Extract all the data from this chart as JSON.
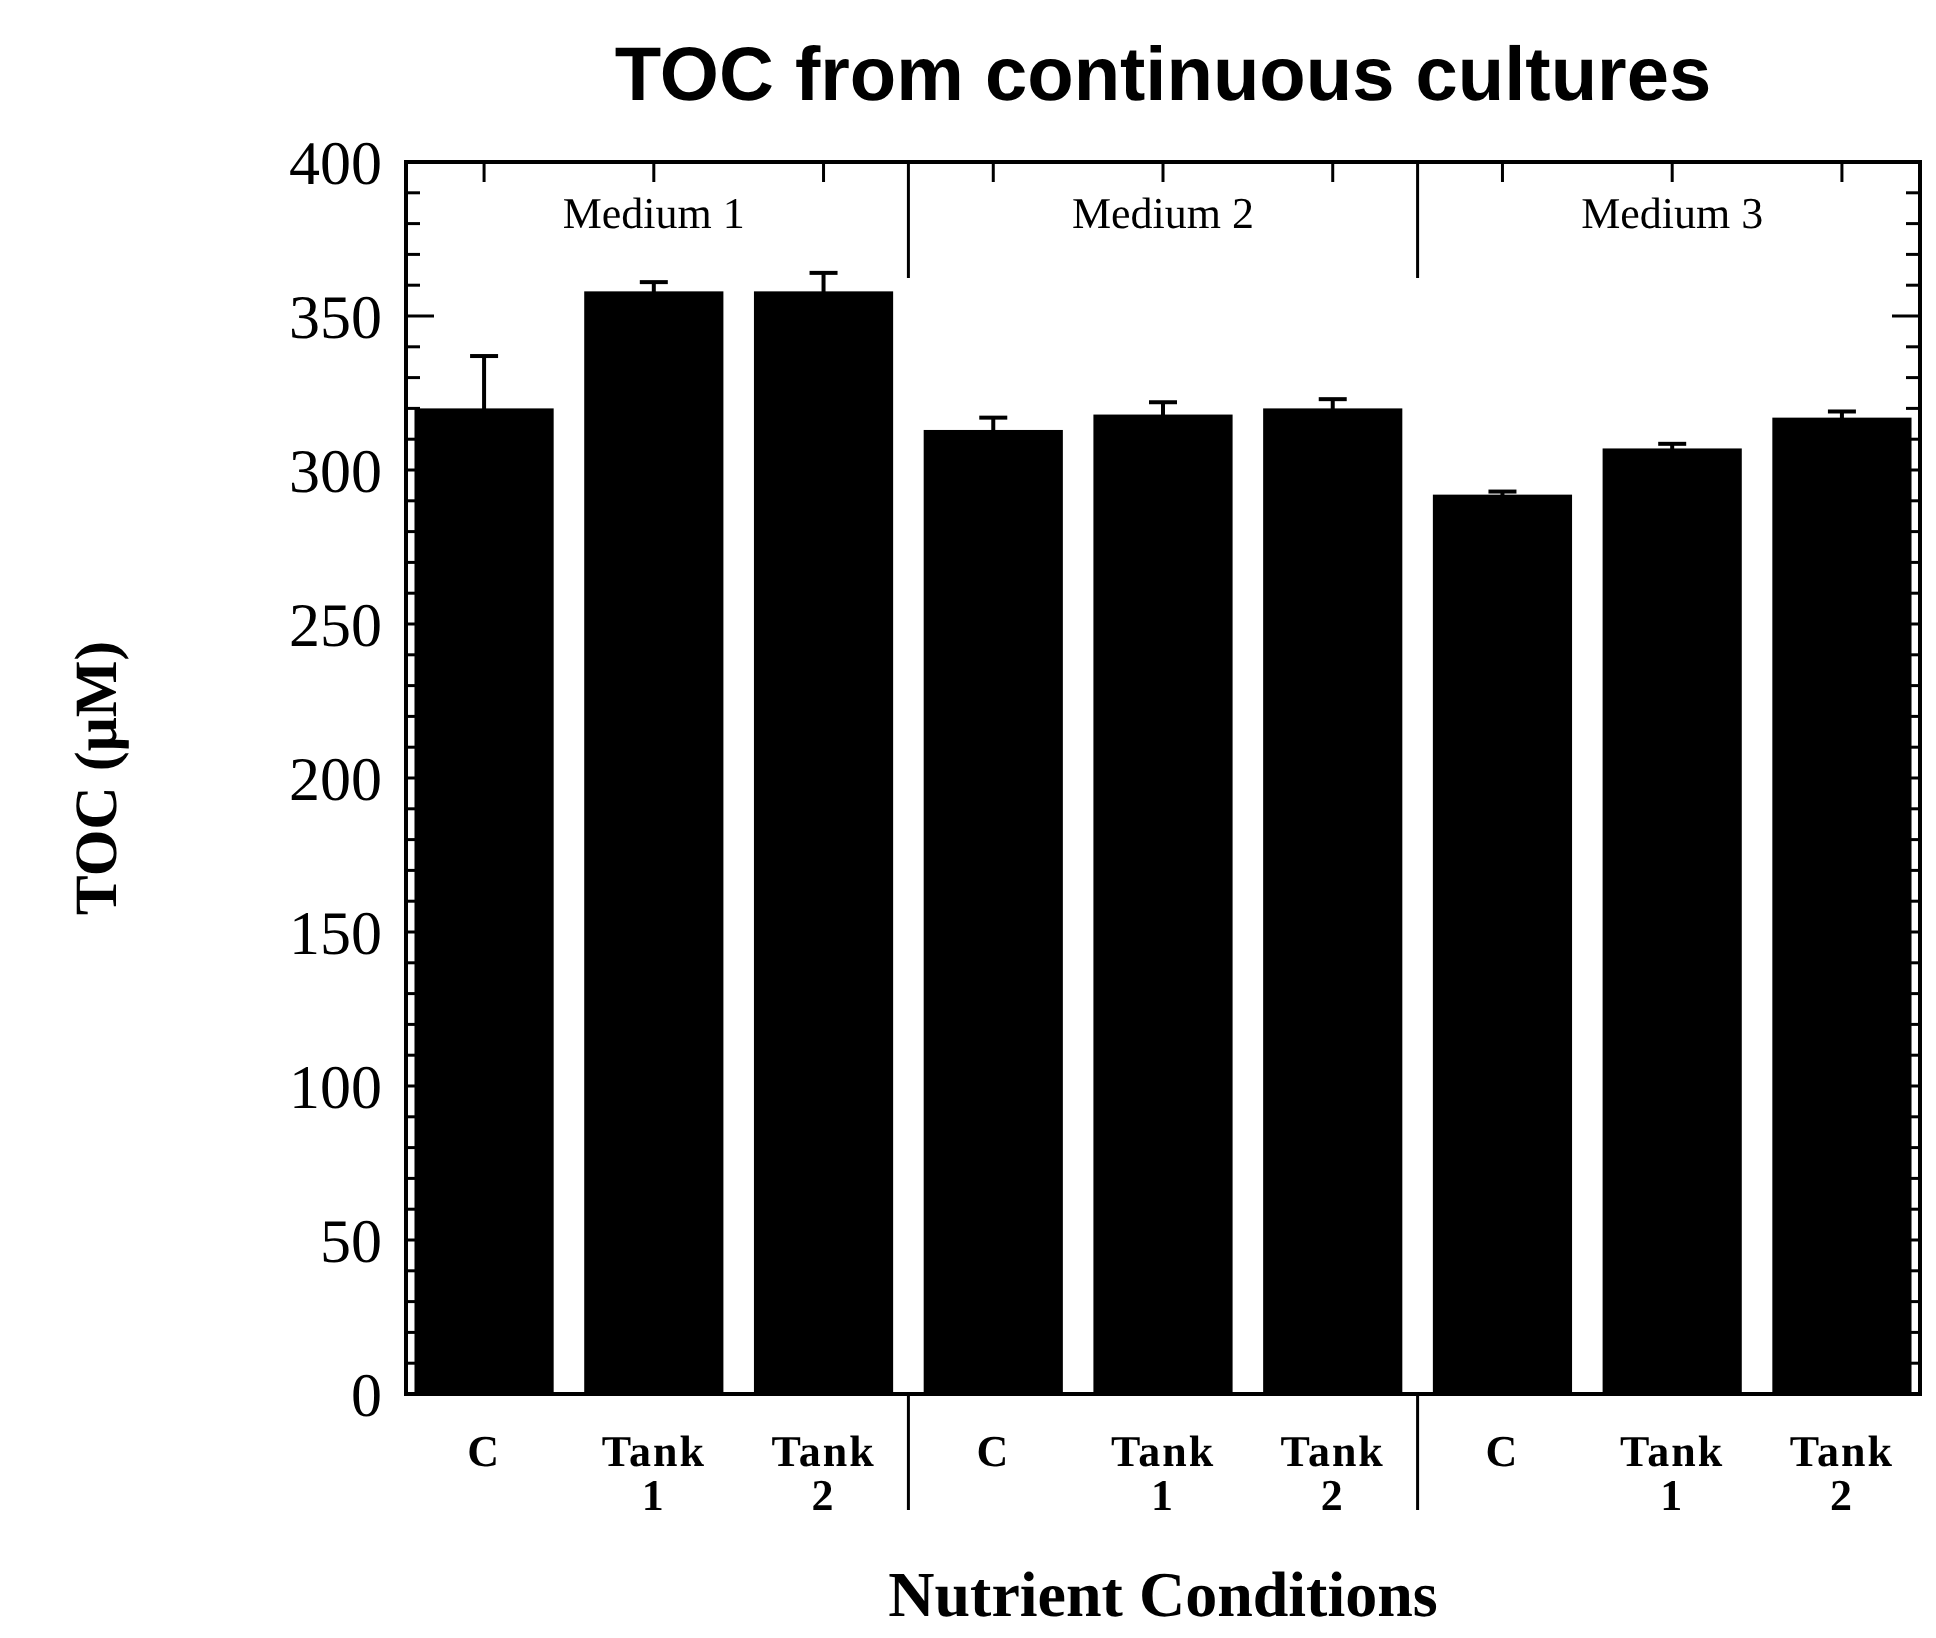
{
  "chart_data": {
    "type": "bar",
    "title": "TOC from continuous cultures",
    "xlabel": "Nutrient Conditions",
    "ylabel": "TOC (μM)",
    "categories": [
      "C",
      "Tank 1",
      "Tank 2",
      "C",
      "Tank 1",
      "Tank 2",
      "C",
      "Tank 1",
      "Tank 2"
    ],
    "values": [
      320,
      358,
      358,
      313,
      318,
      320,
      292,
      307,
      317
    ],
    "errors": [
      17,
      3,
      6,
      4,
      4,
      3,
      1,
      1.5,
      2
    ],
    "color": "#000000",
    "annotations": [
      "Medium 1",
      "Medium 2",
      "Medium 3"
    ],
    "ylim": [
      0,
      400
    ],
    "yticks": [
      0,
      {
        "value": 10,
        "label": null
      },
      {
        "value": 20,
        "label": null
      },
      {
        "value": 30,
        "label": null
      },
      {
        "value": 40,
        "label": null
      },
      50,
      {
        "value": 60,
        "label": null
      },
      {
        "value": 70,
        "label": null
      },
      {
        "value": 80,
        "label": null
      },
      {
        "value": 90,
        "label": null
      },
      100,
      {
        "value": 110,
        "label": null
      },
      {
        "value": 120,
        "label": null
      },
      {
        "value": 130,
        "label": null
      },
      {
        "value": 140,
        "label": null
      },
      150,
      {
        "value": 160,
        "label": null
      },
      {
        "value": 170,
        "label": null
      },
      {
        "value": 180,
        "label": null
      },
      {
        "value": 190,
        "label": null
      },
      200,
      {
        "value": 210,
        "label": null
      },
      {
        "value": 220,
        "label": null
      },
      {
        "value": 230,
        "label": null
      },
      {
        "value": 240,
        "label": null
      },
      250,
      {
        "value": 260,
        "label": null
      },
      {
        "value": 270,
        "label": null
      },
      {
        "value": 280,
        "label": null
      },
      {
        "value": 290,
        "label": null
      },
      300,
      {
        "value": 310,
        "label": null
      },
      {
        "value": 320,
        "label": null
      },
      {
        "value": 330,
        "label": null
      },
      {
        "value": 340,
        "label": null
      },
      350,
      {
        "value": 360,
        "label": null
      },
      {
        "value": 370,
        "label": null
      },
      {
        "value": 380,
        "label": null
      },
      {
        "value": 390,
        "label": null
      },
      400
    ]
  }
}
